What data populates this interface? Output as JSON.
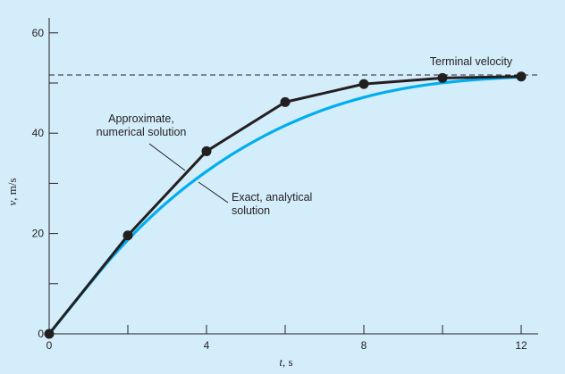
{
  "chart_data": {
    "type": "line",
    "title": "",
    "xlabel": "t, s",
    "xlabel_var": "t",
    "xlabel_unit": ", s",
    "ylabel": "v, m/s",
    "ylabel_var": "v",
    "ylabel_unit": ", m/s",
    "xlim": [
      0,
      12.3
    ],
    "ylim": [
      0,
      64
    ],
    "x_ticks_major": [
      0,
      4,
      8,
      12
    ],
    "x_ticks_minor": [
      2,
      6,
      10
    ],
    "y_ticks_major": [
      0,
      20,
      40,
      60
    ],
    "y_ticks_minor": [
      10,
      30,
      50
    ],
    "grid": false,
    "series": [
      {
        "name": "Exact, analytical solution",
        "style": "smooth",
        "color": "#00aeef",
        "x": [
          0,
          0.5,
          1,
          1.5,
          2,
          2.5,
          3,
          3.5,
          4,
          4.5,
          5,
          5.5,
          6,
          6.5,
          7,
          7.5,
          8,
          8.5,
          9,
          9.5,
          10,
          10.5,
          11,
          11.5,
          12
        ],
        "values": [
          0,
          4.86,
          9.69,
          14.42,
          18.73,
          22.67,
          26.23,
          29.46,
          32.38,
          35.04,
          37.43,
          39.59,
          41.51,
          43.22,
          44.73,
          46.02,
          47.14,
          48.09,
          48.88,
          49.52,
          50.03,
          50.43,
          50.75,
          51.0,
          51.19
        ]
      },
      {
        "name": "Approximate, numerical solution",
        "style": "markers",
        "color": "#231f20",
        "x": [
          0,
          2,
          4,
          6,
          8,
          10,
          12
        ],
        "values": [
          0,
          19.62,
          36.4,
          46.2,
          49.8,
          51.0,
          51.3
        ]
      }
    ],
    "reference_line": {
      "label": "Terminal velocity",
      "value": 51.6,
      "style": "dashed"
    },
    "annotations": {
      "approx_label_line1": "Approximate,",
      "approx_label_line2": "numerical solution",
      "exact_label_line1": "Exact, analytical",
      "exact_label_line2": "solution",
      "terminal_label": "Terminal velocity"
    }
  },
  "colors": {
    "plot_background": "#d4edfb",
    "axis": "#231f20"
  }
}
